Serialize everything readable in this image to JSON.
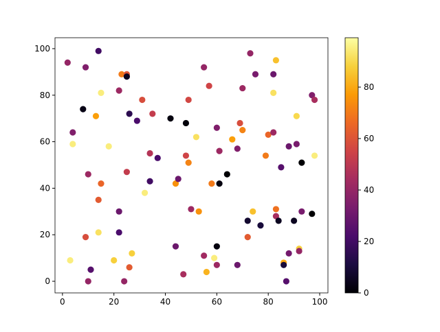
{
  "chart_data": {
    "type": "scatter",
    "x": [
      2,
      9,
      14,
      23,
      25,
      25,
      15,
      22,
      8,
      13,
      26,
      29,
      31,
      35,
      42,
      48,
      49,
      55,
      57,
      73,
      75,
      82,
      83,
      82,
      70,
      97,
      98,
      4,
      4,
      18,
      34,
      37,
      48,
      49,
      52,
      60,
      61,
      66,
      68,
      69,
      70,
      80,
      82,
      79,
      85,
      88,
      91,
      93,
      98,
      10,
      15,
      25,
      34,
      14,
      32,
      44,
      45,
      58,
      61,
      64,
      9,
      14,
      22,
      22,
      3,
      11,
      10,
      20,
      26,
      27,
      24,
      44,
      47,
      50,
      53,
      55,
      56,
      59,
      60,
      60,
      68,
      72,
      72,
      74,
      77,
      83,
      83,
      84,
      86,
      86,
      87,
      88,
      90,
      92,
      92,
      93,
      97,
      91
    ],
    "values": [
      94,
      92,
      99,
      89,
      89,
      88,
      81,
      82,
      74,
      71,
      72,
      69,
      78,
      72,
      70,
      68,
      78,
      92,
      84,
      98,
      89,
      89,
      95,
      81,
      83,
      80,
      78,
      64,
      59,
      58,
      55,
      53,
      54,
      51,
      62,
      66,
      56,
      61,
      57,
      68,
      65,
      63,
      64,
      54,
      49,
      58,
      59,
      51,
      54,
      46,
      42,
      47,
      43,
      35,
      38,
      42,
      44,
      42,
      42,
      46,
      19,
      21,
      30,
      21,
      9,
      5,
      0,
      9,
      6,
      12,
      0,
      15,
      3,
      31,
      30,
      11,
      4,
      10,
      15,
      7,
      7,
      26,
      19,
      30,
      24,
      31,
      28,
      26,
      8,
      7,
      0,
      12,
      26,
      14,
      13,
      30,
      29,
      71
    ],
    "color_values": [
      40,
      35,
      20,
      70,
      60,
      5,
      95,
      42,
      3,
      78,
      15,
      22,
      58,
      52,
      2,
      1,
      56,
      40,
      55,
      40,
      33,
      30,
      85,
      92,
      42,
      35,
      45,
      35,
      95,
      95,
      48,
      22,
      55,
      72,
      92,
      35,
      42,
      78,
      35,
      58,
      72,
      65,
      42,
      70,
      25,
      30,
      33,
      0,
      95,
      42,
      65,
      52,
      20,
      62,
      95,
      75,
      30,
      70,
      2,
      0,
      58,
      92,
      30,
      22,
      95,
      25,
      40,
      88,
      62,
      88,
      40,
      30,
      45,
      42,
      75,
      43,
      82,
      95,
      2,
      42,
      30,
      8,
      62,
      85,
      10,
      68,
      45,
      5,
      80,
      10,
      25,
      32,
      5,
      88,
      40,
      33,
      0,
      90
    ],
    "xlim": [
      -2.9,
      103.2
    ],
    "ylim": [
      -5.0,
      104.7
    ],
    "xticks": [
      0,
      20,
      40,
      60,
      80,
      100
    ],
    "yticks": [
      0,
      20,
      40,
      60,
      80,
      100
    ],
    "colormap": "inferno",
    "clim": [
      0,
      99.2
    ],
    "cticks": [
      0,
      20,
      40,
      60,
      80
    ]
  }
}
